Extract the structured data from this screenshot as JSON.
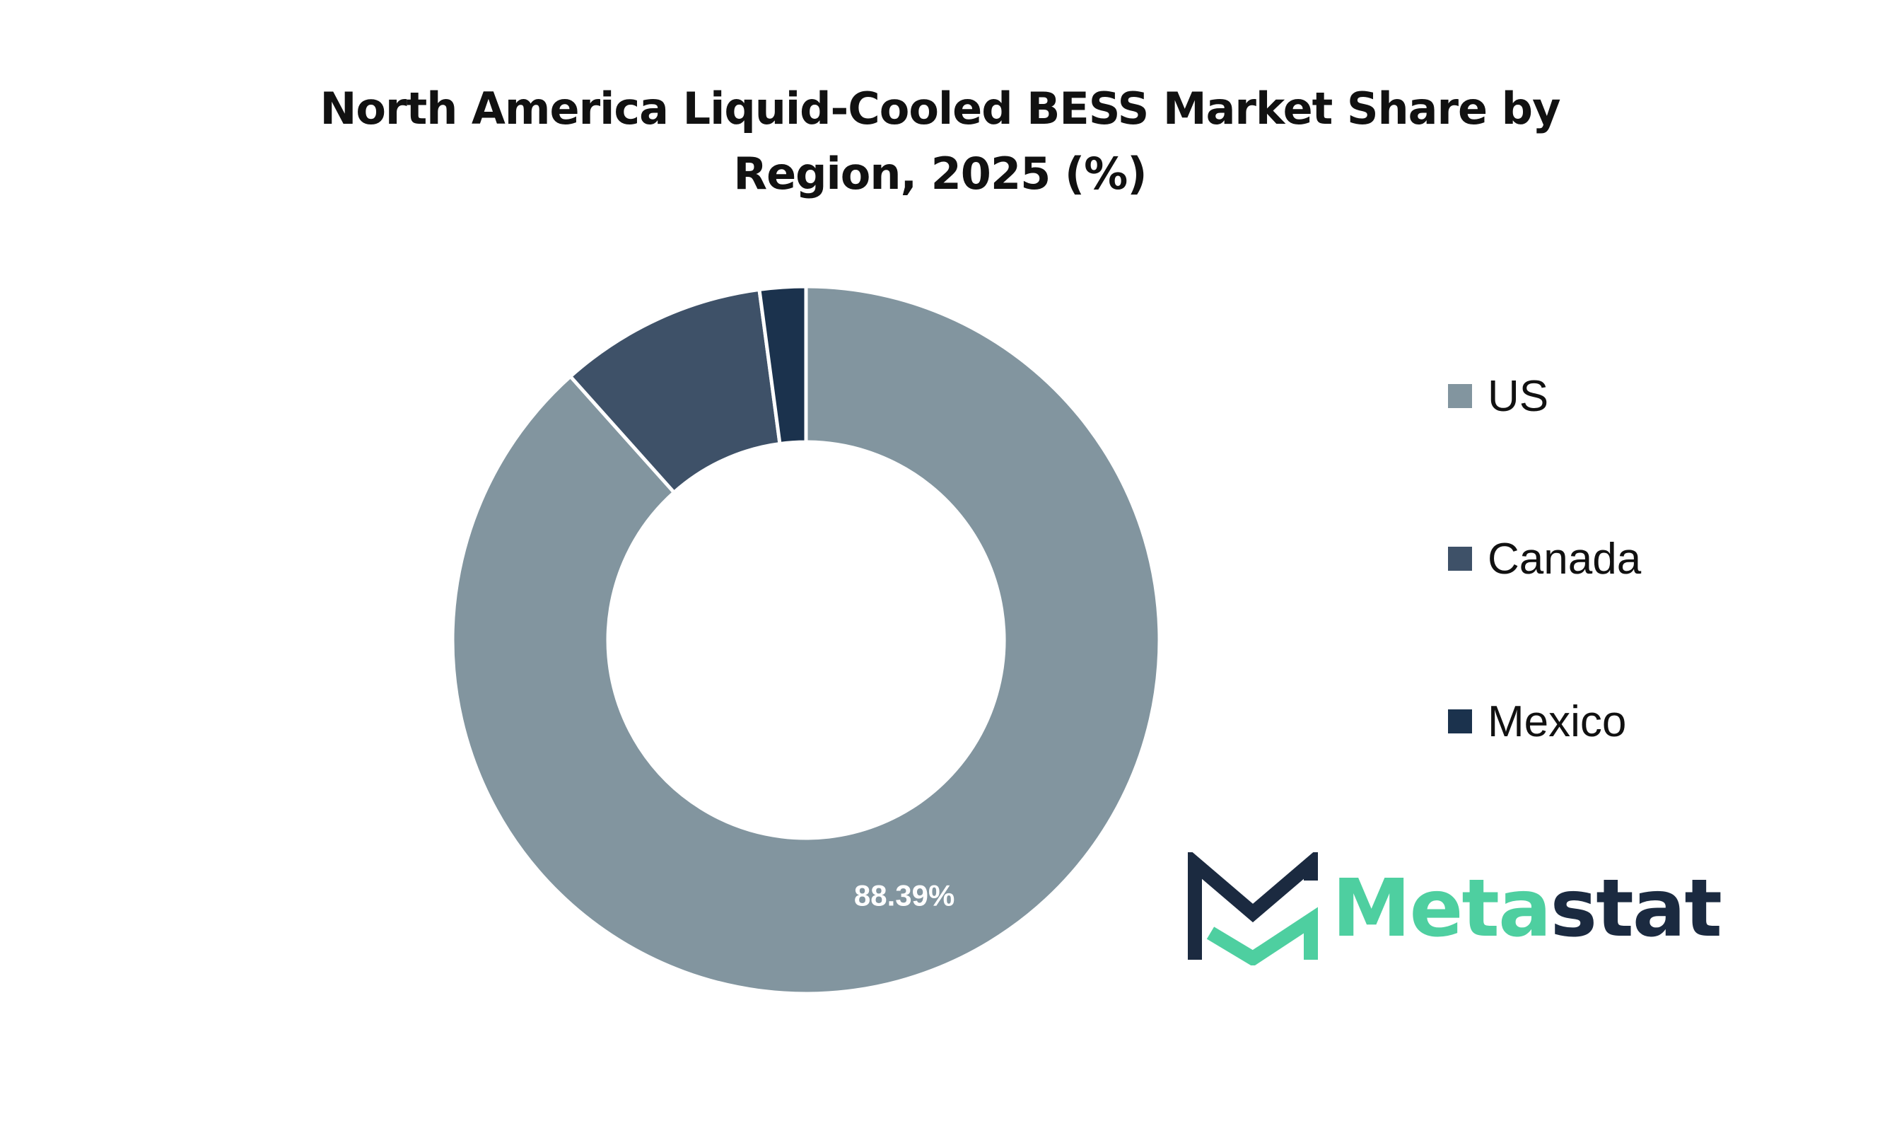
{
  "chart_data": {
    "type": "pie",
    "title_line1": "North America Liquid-Cooled BESS Market Share by",
    "title_line2": "Region, 2025 (%)",
    "categories": [
      "US",
      "Canada",
      "Mexico"
    ],
    "values": [
      88.39,
      9.5,
      2.11
    ],
    "data_labels": [
      "88.39%",
      "",
      ""
    ],
    "colors": [
      "#82959f",
      "#3e5168",
      "#1b324d"
    ],
    "hole": 0.56,
    "legend_position": "right"
  },
  "logo": {
    "text_part1": "Meta",
    "text_part2": "stat",
    "color_green": "#4ecfa0",
    "color_navy": "#1b2a40"
  }
}
